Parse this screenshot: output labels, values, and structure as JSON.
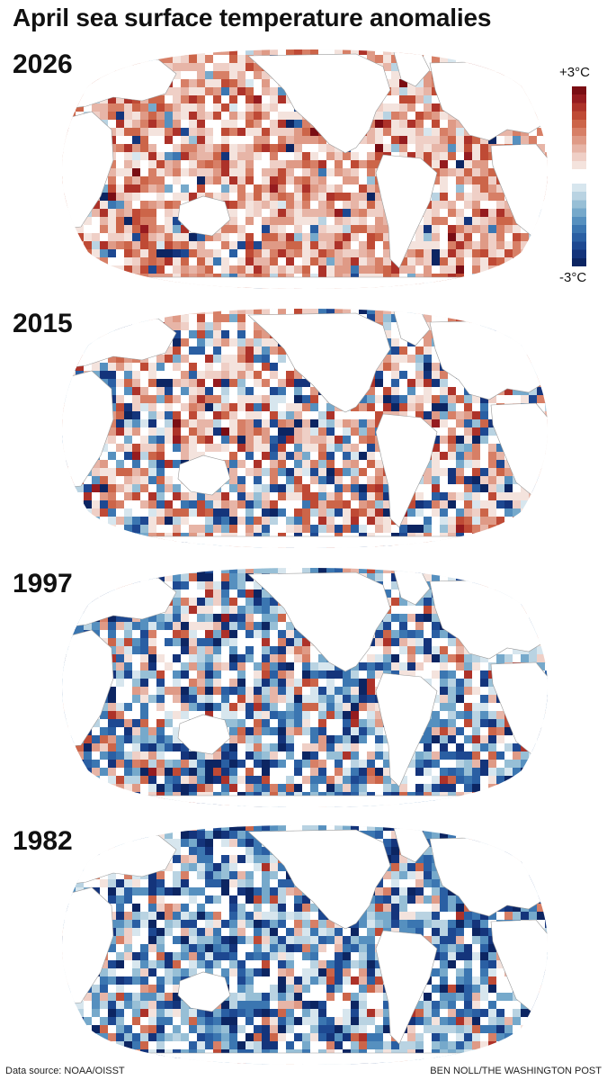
{
  "title": "April sea surface temperature anomalies",
  "legend": {
    "max_label": "+3°C",
    "min_label": "-3°C",
    "warm_colors": [
      "#7a0d13",
      "#951b1f",
      "#ad3229",
      "#bf4a35",
      "#cc6549",
      "#d77f66",
      "#df9a86",
      "#e7b5a7",
      "#efcfc6",
      "#f4e3dd"
    ],
    "cool_colors": [
      "#d7e6ee",
      "#b9d3e2",
      "#97bfd6",
      "#76a9cb",
      "#5690bf",
      "#3b76b1",
      "#2a5fa3",
      "#1d4891",
      "#14347b",
      "#0c2562"
    ]
  },
  "chart_data": {
    "type": "map",
    "projection": "Robinson-like world ocean maps",
    "variable": "Sea surface temperature anomaly",
    "units": "°C",
    "scale_range": [
      -3,
      3
    ],
    "panels": [
      {
        "year": "2026",
        "summary": "widespread warm anomalies, strongest in N Pacific and S Pacific"
      },
      {
        "year": "2015",
        "summary": "strong warm anomaly in NE Pacific, mixed elsewhere"
      },
      {
        "year": "1997",
        "summary": "mostly cool anomalies, patches of warmth"
      },
      {
        "year": "1982",
        "summary": "predominantly cool anomalies"
      }
    ]
  },
  "footer": {
    "source": "Data source: NOAA/OISST",
    "credit": "BEN NOLL/THE WASHINGTON POST"
  }
}
